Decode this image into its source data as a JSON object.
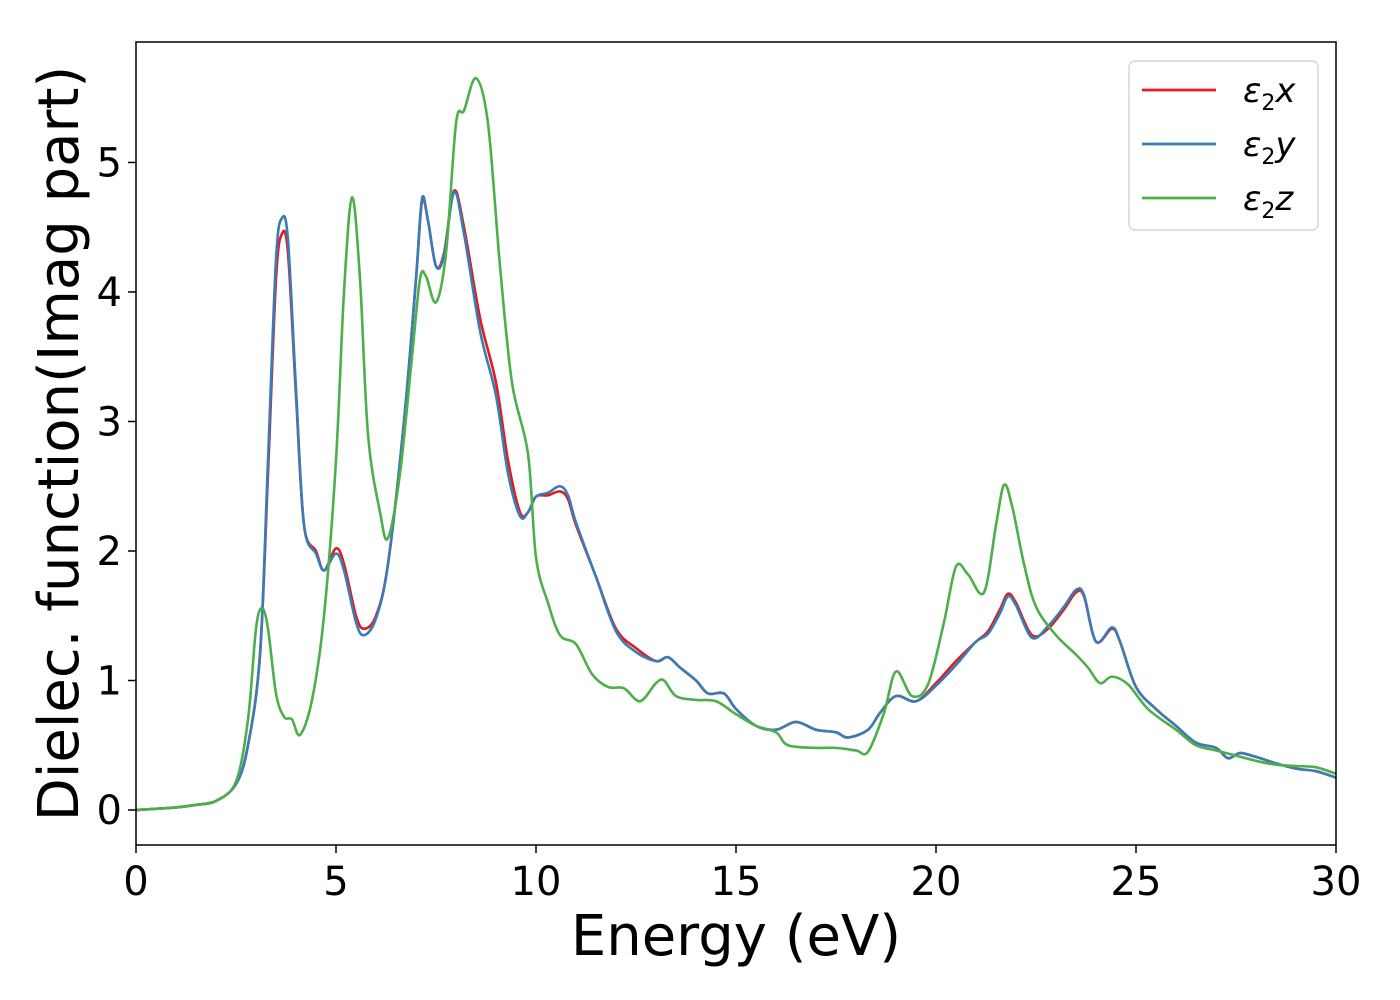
{
  "chart_data": {
    "type": "line",
    "xlabel": "Energy (eV)",
    "ylabel": "Dielec. function(Imag part)",
    "xlim": [
      0,
      30
    ],
    "ylim": [
      -0.27,
      5.93
    ],
    "x_ticks": [
      0,
      5,
      10,
      15,
      20,
      25,
      30
    ],
    "y_ticks": [
      0,
      1,
      2,
      3,
      4,
      5
    ],
    "grid": false,
    "legend_position": "top-right",
    "series": [
      {
        "name_symbol": "ε",
        "name_sub": "2",
        "name_suffix": "x",
        "color": "#e41a1c",
        "points": [
          [
            0,
            0
          ],
          [
            1,
            0.02
          ],
          [
            1.5,
            0.04
          ],
          [
            2,
            0.07
          ],
          [
            2.5,
            0.2
          ],
          [
            2.8,
            0.5
          ],
          [
            3.1,
            1.2
          ],
          [
            3.3,
            2.6
          ],
          [
            3.5,
            4.1
          ],
          [
            3.65,
            4.45
          ],
          [
            3.8,
            4.3
          ],
          [
            4,
            3.2
          ],
          [
            4.2,
            2.2
          ],
          [
            4.5,
            2.0
          ],
          [
            4.7,
            1.85
          ],
          [
            5,
            2.02
          ],
          [
            5.2,
            1.9
          ],
          [
            5.5,
            1.5
          ],
          [
            5.7,
            1.4
          ],
          [
            6,
            1.5
          ],
          [
            6.3,
            1.9
          ],
          [
            6.7,
            3.0
          ],
          [
            7,
            4.1
          ],
          [
            7.15,
            4.7
          ],
          [
            7.3,
            4.55
          ],
          [
            7.5,
            4.2
          ],
          [
            7.7,
            4.3
          ],
          [
            7.95,
            4.78
          ],
          [
            8.2,
            4.5
          ],
          [
            8.6,
            3.8
          ],
          [
            9,
            3.3
          ],
          [
            9.3,
            2.7
          ],
          [
            9.6,
            2.3
          ],
          [
            9.8,
            2.3
          ],
          [
            10,
            2.42
          ],
          [
            10.3,
            2.43
          ],
          [
            10.6,
            2.46
          ],
          [
            10.8,
            2.4
          ],
          [
            11,
            2.2
          ],
          [
            11.5,
            1.8
          ],
          [
            12,
            1.4
          ],
          [
            12.5,
            1.25
          ],
          [
            13,
            1.15
          ],
          [
            13.3,
            1.18
          ],
          [
            13.6,
            1.1
          ],
          [
            14,
            1.0
          ],
          [
            14.3,
            0.9
          ],
          [
            14.7,
            0.9
          ],
          [
            15,
            0.78
          ],
          [
            15.5,
            0.65
          ],
          [
            16,
            0.62
          ],
          [
            16.5,
            0.68
          ],
          [
            17,
            0.62
          ],
          [
            17.5,
            0.6
          ],
          [
            17.8,
            0.56
          ],
          [
            18.3,
            0.62
          ],
          [
            18.6,
            0.75
          ],
          [
            19,
            0.88
          ],
          [
            19.5,
            0.84
          ],
          [
            20,
            0.98
          ],
          [
            20.5,
            1.15
          ],
          [
            21,
            1.3
          ],
          [
            21.3,
            1.38
          ],
          [
            21.6,
            1.55
          ],
          [
            21.8,
            1.67
          ],
          [
            22,
            1.6
          ],
          [
            22.4,
            1.35
          ],
          [
            22.8,
            1.4
          ],
          [
            23.2,
            1.55
          ],
          [
            23.5,
            1.68
          ],
          [
            23.7,
            1.65
          ],
          [
            24,
            1.3
          ],
          [
            24.4,
            1.4
          ],
          [
            24.6,
            1.3
          ],
          [
            25,
            0.95
          ],
          [
            25.5,
            0.78
          ],
          [
            26,
            0.65
          ],
          [
            26.5,
            0.52
          ],
          [
            27,
            0.48
          ],
          [
            27.3,
            0.4
          ],
          [
            27.6,
            0.44
          ],
          [
            28,
            0.41
          ],
          [
            28.5,
            0.36
          ],
          [
            29,
            0.32
          ],
          [
            29.5,
            0.3
          ],
          [
            30,
            0.25
          ]
        ]
      },
      {
        "name_symbol": "ε",
        "name_sub": "2",
        "name_suffix": "y",
        "color": "#377eb8",
        "points": [
          [
            0,
            0
          ],
          [
            1,
            0.02
          ],
          [
            1.5,
            0.04
          ],
          [
            2,
            0.07
          ],
          [
            2.5,
            0.2
          ],
          [
            2.8,
            0.5
          ],
          [
            3.1,
            1.2
          ],
          [
            3.3,
            2.7
          ],
          [
            3.5,
            4.25
          ],
          [
            3.65,
            4.57
          ],
          [
            3.8,
            4.4
          ],
          [
            4,
            3.25
          ],
          [
            4.2,
            2.2
          ],
          [
            4.5,
            1.98
          ],
          [
            4.7,
            1.85
          ],
          [
            5,
            1.98
          ],
          [
            5.2,
            1.85
          ],
          [
            5.5,
            1.45
          ],
          [
            5.7,
            1.35
          ],
          [
            6,
            1.48
          ],
          [
            6.3,
            1.9
          ],
          [
            6.7,
            3.0
          ],
          [
            7,
            4.1
          ],
          [
            7.15,
            4.72
          ],
          [
            7.3,
            4.55
          ],
          [
            7.5,
            4.2
          ],
          [
            7.7,
            4.28
          ],
          [
            7.95,
            4.77
          ],
          [
            8.2,
            4.45
          ],
          [
            8.6,
            3.7
          ],
          [
            9,
            3.2
          ],
          [
            9.3,
            2.6
          ],
          [
            9.6,
            2.27
          ],
          [
            9.8,
            2.3
          ],
          [
            10,
            2.42
          ],
          [
            10.3,
            2.45
          ],
          [
            10.6,
            2.5
          ],
          [
            10.8,
            2.43
          ],
          [
            11,
            2.22
          ],
          [
            11.5,
            1.8
          ],
          [
            12,
            1.38
          ],
          [
            12.5,
            1.22
          ],
          [
            13,
            1.15
          ],
          [
            13.3,
            1.18
          ],
          [
            13.6,
            1.1
          ],
          [
            14,
            1.0
          ],
          [
            14.3,
            0.9
          ],
          [
            14.7,
            0.9
          ],
          [
            15,
            0.78
          ],
          [
            15.5,
            0.65
          ],
          [
            16,
            0.62
          ],
          [
            16.5,
            0.68
          ],
          [
            17,
            0.62
          ],
          [
            17.5,
            0.6
          ],
          [
            17.8,
            0.56
          ],
          [
            18.3,
            0.62
          ],
          [
            18.6,
            0.75
          ],
          [
            19,
            0.88
          ],
          [
            19.5,
            0.84
          ],
          [
            20,
            0.96
          ],
          [
            20.5,
            1.12
          ],
          [
            21,
            1.3
          ],
          [
            21.3,
            1.36
          ],
          [
            21.6,
            1.52
          ],
          [
            21.8,
            1.65
          ],
          [
            22,
            1.58
          ],
          [
            22.4,
            1.33
          ],
          [
            22.8,
            1.42
          ],
          [
            23.2,
            1.57
          ],
          [
            23.5,
            1.7
          ],
          [
            23.7,
            1.66
          ],
          [
            24,
            1.3
          ],
          [
            24.4,
            1.41
          ],
          [
            24.6,
            1.3
          ],
          [
            25,
            0.95
          ],
          [
            25.5,
            0.78
          ],
          [
            26,
            0.65
          ],
          [
            26.5,
            0.52
          ],
          [
            27,
            0.48
          ],
          [
            27.3,
            0.4
          ],
          [
            27.6,
            0.44
          ],
          [
            28,
            0.41
          ],
          [
            28.5,
            0.36
          ],
          [
            29,
            0.32
          ],
          [
            29.5,
            0.3
          ],
          [
            30,
            0.25
          ]
        ]
      },
      {
        "name_symbol": "ε",
        "name_sub": "2",
        "name_suffix": "z",
        "color": "#4daf4a",
        "points": [
          [
            0,
            0
          ],
          [
            1,
            0.02
          ],
          [
            1.5,
            0.04
          ],
          [
            2,
            0.07
          ],
          [
            2.5,
            0.22
          ],
          [
            2.8,
            0.7
          ],
          [
            3.0,
            1.4
          ],
          [
            3.15,
            1.56
          ],
          [
            3.3,
            1.4
          ],
          [
            3.5,
            0.9
          ],
          [
            3.7,
            0.72
          ],
          [
            3.9,
            0.7
          ],
          [
            4.1,
            0.58
          ],
          [
            4.4,
            0.85
          ],
          [
            4.7,
            1.5
          ],
          [
            5,
            2.7
          ],
          [
            5.2,
            4.0
          ],
          [
            5.4,
            4.73
          ],
          [
            5.6,
            4.1
          ],
          [
            5.8,
            2.9
          ],
          [
            6.1,
            2.3
          ],
          [
            6.3,
            2.1
          ],
          [
            6.6,
            2.6
          ],
          [
            6.9,
            3.5
          ],
          [
            7.1,
            4.1
          ],
          [
            7.25,
            4.12
          ],
          [
            7.5,
            3.92
          ],
          [
            7.75,
            4.3
          ],
          [
            8.0,
            5.3
          ],
          [
            8.2,
            5.4
          ],
          [
            8.5,
            5.65
          ],
          [
            8.8,
            5.3
          ],
          [
            9.1,
            4.2
          ],
          [
            9.4,
            3.3
          ],
          [
            9.8,
            2.75
          ],
          [
            10,
            1.95
          ],
          [
            10.3,
            1.6
          ],
          [
            10.6,
            1.35
          ],
          [
            11,
            1.28
          ],
          [
            11.4,
            1.05
          ],
          [
            11.8,
            0.95
          ],
          [
            12.2,
            0.94
          ],
          [
            12.6,
            0.84
          ],
          [
            13,
            0.98
          ],
          [
            13.2,
            1.0
          ],
          [
            13.5,
            0.88
          ],
          [
            14,
            0.85
          ],
          [
            14.5,
            0.84
          ],
          [
            15,
            0.74
          ],
          [
            15.5,
            0.65
          ],
          [
            16,
            0.6
          ],
          [
            16.3,
            0.5
          ],
          [
            17,
            0.48
          ],
          [
            17.5,
            0.48
          ],
          [
            18,
            0.46
          ],
          [
            18.3,
            0.45
          ],
          [
            18.7,
            0.75
          ],
          [
            19,
            1.07
          ],
          [
            19.4,
            0.88
          ],
          [
            19.8,
            0.97
          ],
          [
            20.2,
            1.45
          ],
          [
            20.5,
            1.88
          ],
          [
            20.8,
            1.82
          ],
          [
            21.2,
            1.68
          ],
          [
            21.5,
            2.2
          ],
          [
            21.7,
            2.51
          ],
          [
            21.9,
            2.35
          ],
          [
            22.2,
            1.9
          ],
          [
            22.5,
            1.57
          ],
          [
            23,
            1.35
          ],
          [
            23.5,
            1.2
          ],
          [
            23.8,
            1.1
          ],
          [
            24.1,
            0.98
          ],
          [
            24.4,
            1.03
          ],
          [
            24.8,
            0.97
          ],
          [
            25.3,
            0.78
          ],
          [
            26,
            0.62
          ],
          [
            26.5,
            0.5
          ],
          [
            27,
            0.46
          ],
          [
            27.5,
            0.42
          ],
          [
            28,
            0.38
          ],
          [
            28.5,
            0.35
          ],
          [
            29,
            0.34
          ],
          [
            29.5,
            0.33
          ],
          [
            30,
            0.28
          ]
        ]
      }
    ]
  }
}
